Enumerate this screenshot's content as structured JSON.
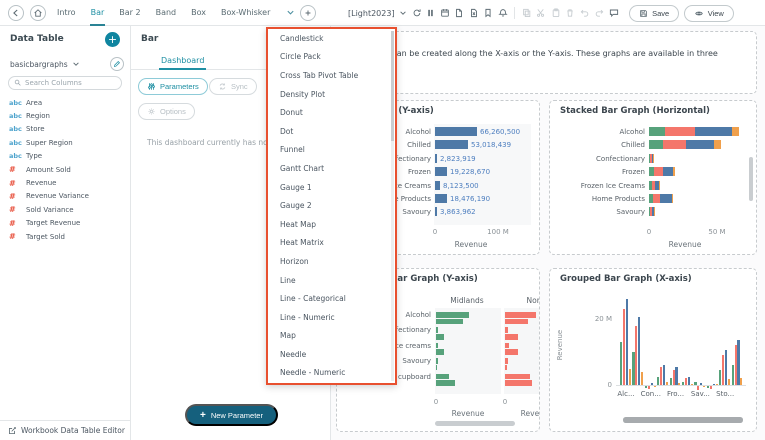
{
  "toolbar": {
    "tabs": [
      "Intro",
      "Bar",
      "Bar 2",
      "Band",
      "Box",
      "Box-Whisker"
    ],
    "active_tab": "Bar",
    "theme_label": "[Light2023]",
    "save_label": "Save",
    "view_label": "View",
    "icons_right": [
      "refresh",
      "pause",
      "schedule",
      "export-pdf",
      "export-excel",
      "bookmark",
      "alerts",
      "copy",
      "cut",
      "paste",
      "delete",
      "undo",
      "redo",
      "comment"
    ]
  },
  "sidebar": {
    "title": "Data Table",
    "table_name": "basicbargraphs",
    "search_placeholder": "Search Columns",
    "columns": [
      {
        "icon": "abc",
        "type": "text",
        "name": "Area"
      },
      {
        "icon": "abc",
        "type": "text",
        "name": "Region"
      },
      {
        "icon": "abc",
        "type": "text",
        "name": "Store"
      },
      {
        "icon": "abc",
        "type": "text",
        "name": "Super Region"
      },
      {
        "icon": "abc",
        "type": "text",
        "name": "Type"
      },
      {
        "icon": "#",
        "type": "num",
        "name": "Amount Sold"
      },
      {
        "icon": "#",
        "type": "num",
        "name": "Revenue"
      },
      {
        "icon": "#",
        "type": "num",
        "name": "Revenue Variance"
      },
      {
        "icon": "#",
        "type": "num",
        "name": "Sold Variance"
      },
      {
        "icon": "#",
        "type": "num",
        "name": "Target Revenue"
      },
      {
        "icon": "#",
        "type": "num",
        "name": "Target Sold"
      }
    ],
    "footer": "Workbook Data Table Editor"
  },
  "panel": {
    "title": "Bar",
    "tab_dashboard": "Dashboard",
    "parameters_label": "Parameters",
    "sync_label": "Sync",
    "options_label": "Options",
    "empty_text": "This dashboard currently has no",
    "new_parameter_label": "New Parameter"
  },
  "dropdown": {
    "border_color": "#e8502f",
    "items": [
      "Candlestick",
      "Circle Pack",
      "Cross Tab Pivot Table",
      "Density Plot",
      "Donut",
      "Dot",
      "Funnel",
      "Gantt Chart",
      "Gauge 1",
      "Gauge 2",
      "Heat Map",
      "Heat Matrix",
      "Horizon",
      "Line",
      "Line - Categorical",
      "Line - Numeric",
      "Map",
      "Needle",
      "Needle - Numeric"
    ]
  },
  "canvas": {
    "intro_text": "Bar graphs can be created along the X-axis or the Y-axis. These graphs are available in three"
  },
  "chart_data": [
    {
      "type": "bar",
      "orientation": "horizontal",
      "title": "Bar Graph (Y-axis)",
      "categories": [
        "Alcohol",
        "Chilled",
        "Confectionary",
        "Frozen",
        "Frozen Ice Creams",
        "Home Products",
        "Savoury"
      ],
      "values": [
        66260500,
        53018439,
        2823919,
        19228670,
        8123500,
        18476190,
        3863962
      ],
      "value_labels": [
        "66,260,500",
        "53,018,439",
        "2,823,919",
        "19,228,670",
        "8,123,500",
        "18,476,190",
        "3,863,962"
      ],
      "x_max": 100000000,
      "x_ticks": [
        "0",
        "100 M"
      ],
      "x_label": "Revenue",
      "bar_color": "#4e79a7",
      "value_label_color": "#4d7ebf"
    },
    {
      "type": "stacked_bar_h",
      "title": "Stacked Bar Graph (Horizontal)",
      "categories": [
        "Alcohol",
        "Chilled",
        "Confectionary",
        "Frozen",
        "Frozen Ice Creams",
        "Home Products",
        "Savoury"
      ],
      "series_colors": [
        "#57a27b",
        "#f4766b",
        "#4e79a7",
        "#f0a04c"
      ],
      "values_m": [
        [
          12,
          22,
          27,
          5
        ],
        [
          10,
          17,
          21,
          5
        ],
        [
          0.9,
          1,
          0.7,
          0.3
        ],
        [
          4,
          6,
          8,
          1
        ],
        [
          2,
          2.5,
          3,
          0.5
        ],
        [
          3,
          5,
          9,
          1
        ],
        [
          1,
          1.5,
          1,
          0.5
        ]
      ],
      "x_ticks": [
        "0",
        "50 M"
      ],
      "x_tick_m": 50,
      "x_label": "Revenue"
    },
    {
      "type": "grouped_bar_y",
      "title": "Grouped Bar Graph (Y-axis)",
      "categories": [
        "Alcohol",
        "Confectionary",
        "Ice creams",
        "Savoury",
        "Store cupboard"
      ],
      "facets": [
        {
          "name": "Midlands",
          "color": "#57a27b",
          "values_m": [
            [
              16,
              13
            ],
            [
              1,
              4
            ],
            [
              1,
              4
            ],
            [
              1,
              0.7
            ],
            [
              6.5,
              9
            ]
          ]
        },
        {
          "name": "North",
          "color": "#f4766b",
          "values_m": [
            [
              15,
              11
            ],
            [
              1.5,
              6.5
            ],
            [
              2,
              6.5
            ],
            [
              1.5,
              1
            ],
            [
              12,
              13
            ]
          ]
        }
      ],
      "x_ticks": [
        "0",
        "0"
      ],
      "x_label": "Revenue"
    },
    {
      "type": "grouped_bar_x",
      "title": "Grouped Bar Graph (X-axis)",
      "y_label": "Revenue",
      "y_ticks": [
        "0",
        "20 M"
      ],
      "y_tick_m": 20,
      "x_labels": [
        "Alc...",
        "Con...",
        "Fro...",
        "Sav...",
        "Sto..."
      ],
      "series_colors": [
        "#57a27b",
        "#f4766b",
        "#4e79a7",
        "#f0a04c"
      ],
      "groups_m": [
        [
          13,
          23,
          26,
          5
        ],
        [
          10,
          18,
          20.5,
          4
        ],
        [
          -0.5,
          -1,
          0.6,
          -0.3
        ],
        [
          2.5,
          5.5,
          6,
          0.8
        ],
        [
          2,
          4.5,
          5.5,
          0.7
        ],
        [
          1,
          2,
          2.5,
          0.4
        ],
        [
          0.8,
          -1.2,
          0.6,
          -0.3
        ],
        [
          -0.5,
          -0.9,
          0.4,
          0.2
        ],
        [
          4.5,
          9,
          10.5,
          1.8
        ],
        [
          6,
          12,
          13.5,
          2.2
        ]
      ]
    }
  ]
}
